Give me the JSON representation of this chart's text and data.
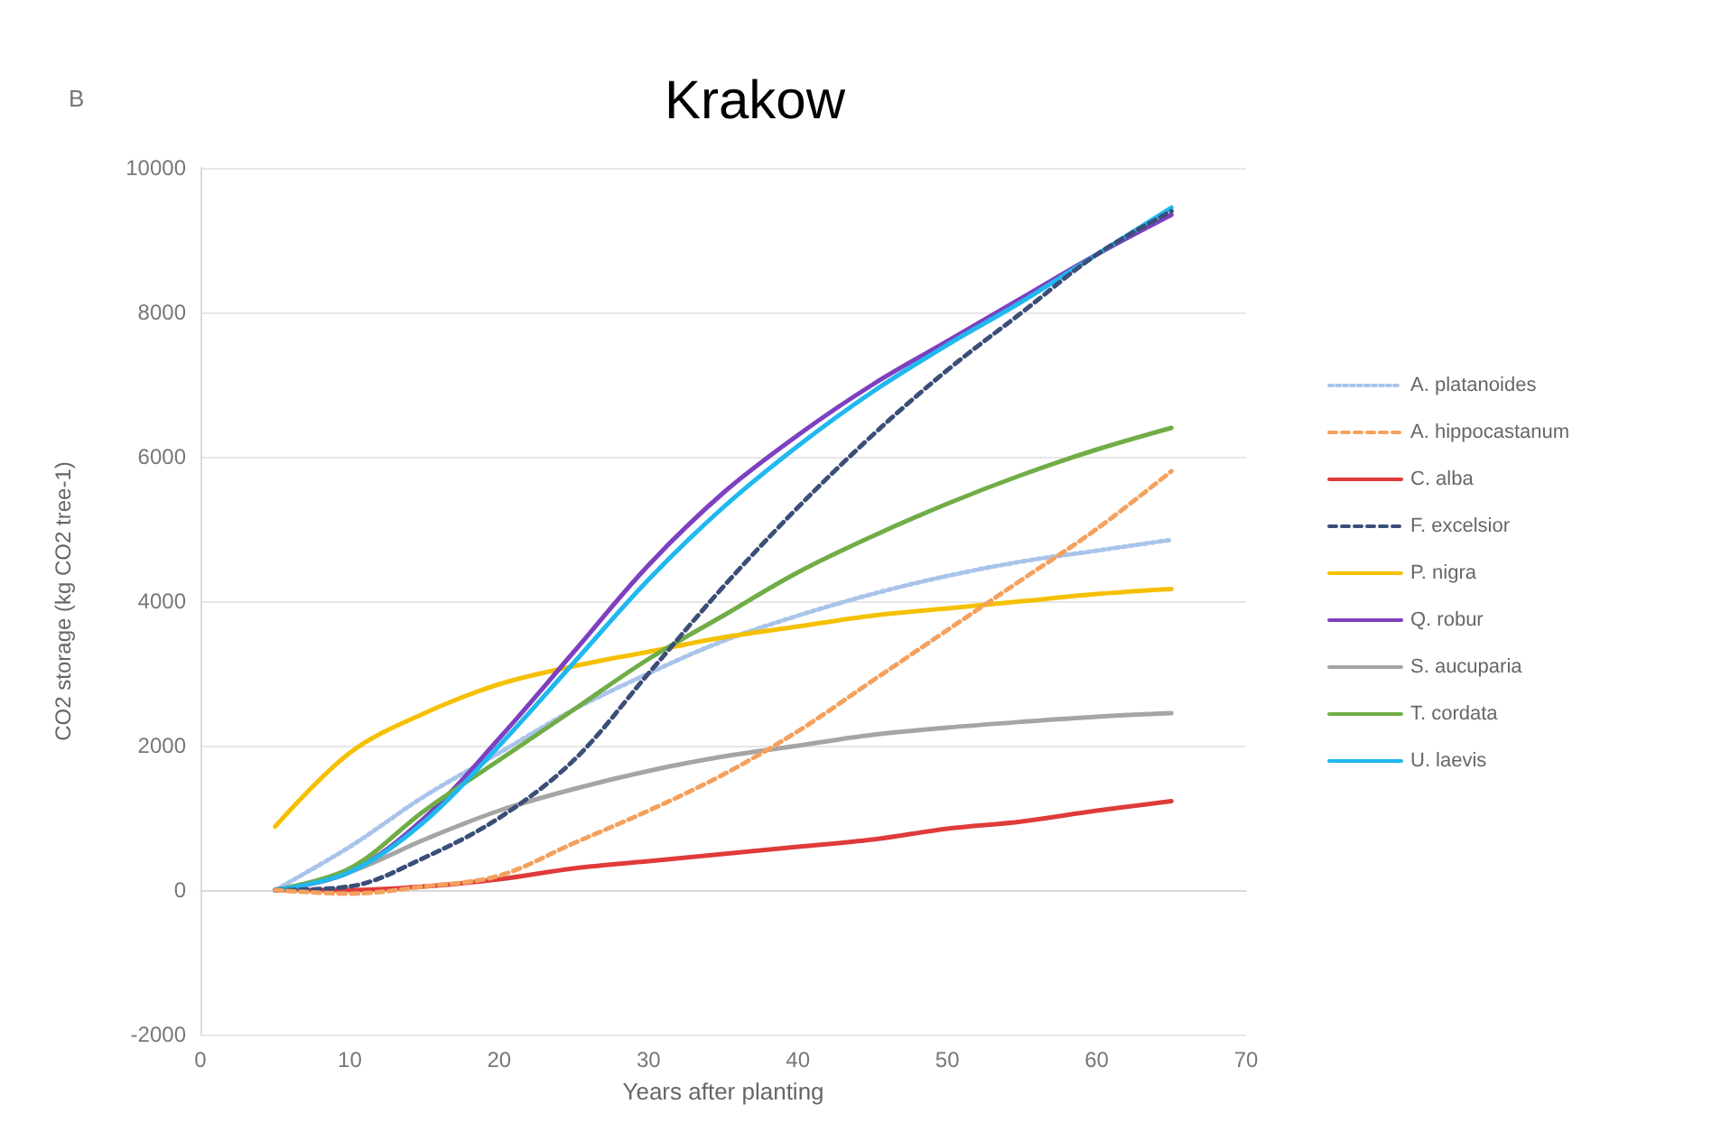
{
  "chart_data": {
    "type": "line",
    "title": "Krakow",
    "xlabel": "Years after planting",
    "ylabel": "CO2 storage (kg CO2 tree-1)",
    "annotations": [
      "B"
    ],
    "x": [
      5,
      10,
      15,
      20,
      25,
      30,
      35,
      40,
      45,
      50,
      55,
      60,
      65
    ],
    "xlim": [
      0,
      70
    ],
    "xticks": [
      0,
      10,
      20,
      30,
      40,
      50,
      60,
      70
    ],
    "ylim": [
      -2000,
      10000
    ],
    "yticks": [
      -2000,
      0,
      2000,
      4000,
      6000,
      8000,
      10000
    ],
    "grid": "y",
    "legend": "right",
    "marker": "none",
    "series": [
      {
        "name": "A. platanoides",
        "color": "#a9c4eb",
        "line_style": "dotted",
        "values": [
          0,
          600,
          1300,
          1900,
          2500,
          3000,
          3450,
          3800,
          4100,
          4350,
          4550,
          4700,
          4850
        ]
      },
      {
        "name": "A. hippocastanum",
        "color": "#f4a15e",
        "line_style": "dashed",
        "values": [
          0,
          -50,
          50,
          200,
          650,
          1100,
          1600,
          2200,
          2900,
          3600,
          4300,
          5000,
          5800
        ]
      },
      {
        "name": "C. alba",
        "color": "#e03a3a",
        "line_style": "solid",
        "values": [
          0,
          0,
          50,
          150,
          300,
          400,
          500,
          600,
          700,
          850,
          950,
          1100,
          1230
        ]
      },
      {
        "name": "F. excelsior",
        "color": "#3b4e78",
        "line_style": "dashed",
        "values": [
          0,
          50,
          450,
          1000,
          1800,
          3000,
          4200,
          5300,
          6300,
          7200,
          8000,
          8800,
          9400
        ]
      },
      {
        "name": "P. nigra",
        "color": "#f5c000",
        "line_style": "solid",
        "values": [
          880,
          1900,
          2450,
          2850,
          3100,
          3300,
          3500,
          3650,
          3800,
          3900,
          4000,
          4100,
          4170
        ]
      },
      {
        "name": "Q. robur",
        "color": "#7e3fc0",
        "line_style": "solid",
        "values": [
          0,
          250,
          1000,
          2100,
          3300,
          4500,
          5500,
          6300,
          7000,
          7600,
          8200,
          8800,
          9350
        ]
      },
      {
        "name": "S. aucuparia",
        "color": "#a5a5a5",
        "line_style": "solid",
        "values": [
          0,
          250,
          700,
          1100,
          1400,
          1650,
          1850,
          2000,
          2150,
          2250,
          2330,
          2400,
          2450
        ]
      },
      {
        "name": "T. cordata",
        "color": "#70ad47",
        "line_style": "solid",
        "values": [
          0,
          300,
          1100,
          1800,
          2500,
          3200,
          3800,
          4400,
          4900,
          5350,
          5750,
          6100,
          6400
        ]
      },
      {
        "name": "U. laevis",
        "color": "#1fb8ef",
        "line_style": "solid",
        "values": [
          0,
          250,
          950,
          2000,
          3150,
          4300,
          5300,
          6150,
          6900,
          7550,
          8150,
          8800,
          9450
        ]
      }
    ]
  }
}
